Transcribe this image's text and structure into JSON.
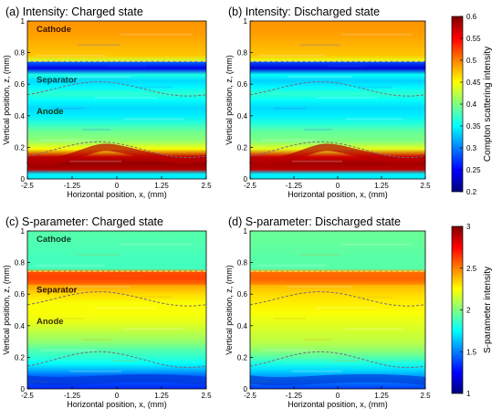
{
  "chart_data": [
    {
      "type": "heatmap",
      "title": "(a) Intensity: Charged state",
      "xlabel": "Horizontal position, x, (mm)",
      "ylabel": "Vertical position, z, (mm)",
      "xlim": [
        -2.5,
        2.5
      ],
      "ylim": [
        0,
        1
      ],
      "xticks": [
        "-2.5",
        "-1.25",
        "0",
        "1.25",
        "2.5"
      ],
      "yticks": [
        "0",
        "0.2",
        "0.4",
        "0.6",
        "0.8",
        "1"
      ],
      "region_labels": [
        "Cathode",
        "Separator",
        "Anode"
      ],
      "metric": "intensity",
      "z_profile": [
        [
          0,
          0.36
        ],
        [
          0.03,
          0.36
        ],
        [
          0.06,
          0.95
        ],
        [
          0.1,
          0.98
        ],
        [
          0.14,
          0.93
        ],
        [
          0.19,
          0.62
        ],
        [
          0.24,
          0.52
        ],
        [
          0.3,
          0.48
        ],
        [
          0.35,
          0.42
        ],
        [
          0.4,
          0.36
        ],
        [
          0.45,
          0.34
        ],
        [
          0.5,
          0.38
        ],
        [
          0.54,
          0.42
        ],
        [
          0.58,
          0.37
        ],
        [
          0.62,
          0.34
        ],
        [
          0.66,
          0.4
        ],
        [
          0.7,
          0.1
        ],
        [
          0.74,
          0.22
        ],
        [
          0.75,
          0.58
        ],
        [
          0.78,
          0.68
        ],
        [
          0.85,
          0.7
        ],
        [
          0.92,
          0.72
        ],
        [
          1.0,
          0.73
        ]
      ]
    },
    {
      "type": "heatmap",
      "title": "(b) Intensity: Discharged state",
      "xlabel": "Horizontal position, x, (mm)",
      "ylabel": "Vertical position, z, (mm)",
      "xlim": [
        -2.5,
        2.5
      ],
      "ylim": [
        0,
        1
      ],
      "xticks": [
        "-2.5",
        "-1.25",
        "0",
        "1.25",
        "2.5"
      ],
      "yticks": [
        "0",
        "0.2",
        "0.4",
        "0.6",
        "0.8",
        "1"
      ],
      "metric": "intensity",
      "z_profile": [
        [
          0,
          0.36
        ],
        [
          0.03,
          0.36
        ],
        [
          0.06,
          0.94
        ],
        [
          0.1,
          0.97
        ],
        [
          0.14,
          0.92
        ],
        [
          0.19,
          0.6
        ],
        [
          0.24,
          0.5
        ],
        [
          0.3,
          0.47
        ],
        [
          0.35,
          0.41
        ],
        [
          0.4,
          0.36
        ],
        [
          0.45,
          0.34
        ],
        [
          0.5,
          0.38
        ],
        [
          0.54,
          0.42
        ],
        [
          0.58,
          0.37
        ],
        [
          0.62,
          0.33
        ],
        [
          0.66,
          0.38
        ],
        [
          0.7,
          0.08
        ],
        [
          0.74,
          0.2
        ],
        [
          0.75,
          0.6
        ],
        [
          0.78,
          0.68
        ],
        [
          0.85,
          0.7
        ],
        [
          0.92,
          0.72
        ],
        [
          1.0,
          0.73
        ]
      ]
    },
    {
      "type": "heatmap",
      "title": "(c) S-parameter: Charged state",
      "xlabel": "Horizontal position, x, (mm)",
      "ylabel": "Vertical position, z, (mm)",
      "xlim": [
        -2.5,
        2.5
      ],
      "ylim": [
        0,
        1
      ],
      "xticks": [
        "-2.5",
        "-1.25",
        "0",
        "1.25",
        "2.5"
      ],
      "yticks": [
        "0",
        "0.2",
        "0.4",
        "0.6",
        "0.8",
        "1"
      ],
      "region_labels": [
        "Cathode",
        "Separator",
        "Anode"
      ],
      "metric": "s-parameter",
      "z_profile": [
        [
          0,
          0.16
        ],
        [
          0.04,
          0.2
        ],
        [
          0.08,
          0.22
        ],
        [
          0.12,
          0.3
        ],
        [
          0.16,
          0.38
        ],
        [
          0.2,
          0.42
        ],
        [
          0.25,
          0.46
        ],
        [
          0.3,
          0.52
        ],
        [
          0.36,
          0.56
        ],
        [
          0.42,
          0.6
        ],
        [
          0.48,
          0.62
        ],
        [
          0.54,
          0.62
        ],
        [
          0.6,
          0.66
        ],
        [
          0.66,
          0.72
        ],
        [
          0.7,
          0.8
        ],
        [
          0.74,
          0.78
        ],
        [
          0.76,
          0.44
        ],
        [
          0.82,
          0.44
        ],
        [
          0.9,
          0.45
        ],
        [
          1.0,
          0.46
        ]
      ]
    },
    {
      "type": "heatmap",
      "title": "(d) S-parameter: Discharged state",
      "xlabel": "Horizontal position, x, (mm)",
      "ylabel": "Vertical position, z, (mm)",
      "xlim": [
        -2.5,
        2.5
      ],
      "ylim": [
        0,
        1
      ],
      "xticks": [
        "-2.5",
        "-1.25",
        "0",
        "1.25",
        "2.5"
      ],
      "yticks": [
        "0",
        "0.2",
        "0.4",
        "0.6",
        "0.8",
        "1"
      ],
      "metric": "s-parameter",
      "z_profile": [
        [
          0,
          0.18
        ],
        [
          0.04,
          0.24
        ],
        [
          0.08,
          0.28
        ],
        [
          0.12,
          0.34
        ],
        [
          0.16,
          0.4
        ],
        [
          0.2,
          0.46
        ],
        [
          0.25,
          0.52
        ],
        [
          0.3,
          0.56
        ],
        [
          0.36,
          0.58
        ],
        [
          0.42,
          0.6
        ],
        [
          0.48,
          0.62
        ],
        [
          0.54,
          0.64
        ],
        [
          0.6,
          0.66
        ],
        [
          0.66,
          0.7
        ],
        [
          0.7,
          0.76
        ],
        [
          0.74,
          0.74
        ],
        [
          0.76,
          0.46
        ],
        [
          0.82,
          0.46
        ],
        [
          0.9,
          0.47
        ],
        [
          1.0,
          0.48
        ]
      ]
    }
  ],
  "colorbars": [
    {
      "label": "Compton scattering intensity",
      "min": 0.2,
      "max": 0.6,
      "ticks": [
        "0.2",
        "0.25",
        "0.3",
        "0.35",
        "0.4",
        "0.45",
        "0.5",
        "0.55",
        "0.6"
      ]
    },
    {
      "label": "S-parameter intensity",
      "min": 1,
      "max": 3,
      "ticks": [
        "1",
        "1.5",
        "2",
        "2.5",
        "3"
      ]
    }
  ],
  "colors": {
    "colormap": [
      "#00007f",
      "#0000ff",
      "#0080ff",
      "#00ffff",
      "#80ff80",
      "#ffff00",
      "#ff8000",
      "#ff0000",
      "#7f0000"
    ],
    "guide_line": "#7a6a7a",
    "cathode_line": "#ffd24a",
    "axis": "#000000"
  }
}
